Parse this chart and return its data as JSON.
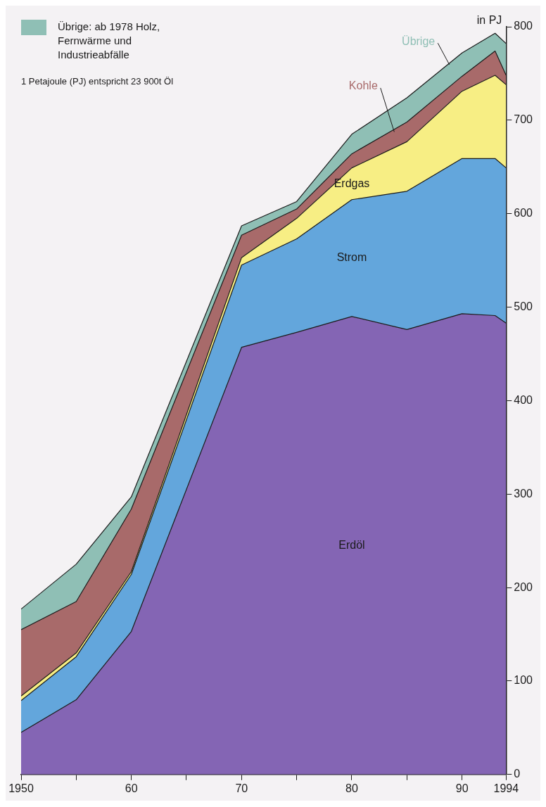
{
  "chart_data": {
    "type": "area",
    "stacked": true,
    "ylabel": "in PJ",
    "annotations": [
      "Übrige: ab 1978 Holz, Fernwärme und Industrieabfälle",
      "1 Petajoule (PJ) entspricht 23 900t Öl"
    ],
    "x": [
      1950,
      1955,
      1960,
      1970,
      1975,
      1980,
      1985,
      1990,
      1993,
      1994
    ],
    "series": [
      {
        "name": "Erdöl",
        "color": "#8465b4",
        "values": [
          45,
          80,
          153,
          457,
          473,
          490,
          476,
          493,
          491,
          483
        ]
      },
      {
        "name": "Strom",
        "color": "#63a6dc",
        "values": [
          34,
          46,
          61,
          88,
          100,
          125,
          148,
          166,
          168,
          166
        ]
      },
      {
        "name": "Erdgas",
        "color": "#f7ee84",
        "values": [
          5,
          4,
          3,
          8,
          22,
          34,
          53,
          72,
          89,
          89
        ]
      },
      {
        "name": "Kohle",
        "color": "#a86a6a",
        "values": [
          71,
          55,
          67,
          24,
          10,
          15,
          21,
          16,
          26,
          10
        ]
      },
      {
        "name": "Übrige",
        "color": "#8fbfb5",
        "values": [
          22,
          40,
          13,
          10,
          8,
          21,
          26,
          25,
          19,
          34
        ]
      }
    ],
    "xlim": [
      1950,
      1994
    ],
    "xticks": [
      1950,
      {
        "value": 1955,
        "label": null
      },
      {
        "value": 1960,
        "label": "60"
      },
      {
        "value": 1965,
        "label": null
      },
      {
        "value": 1970,
        "label": "70"
      },
      {
        "value": 1975,
        "label": null
      },
      {
        "value": 1980,
        "label": "80"
      },
      {
        "value": 1985,
        "label": null
      },
      {
        "value": 1990,
        "label": "90"
      },
      1994
    ],
    "ylim": [
      0,
      800
    ],
    "yticks": [
      0,
      100,
      200,
      300,
      400,
      500,
      600,
      700,
      800
    ],
    "grid": false,
    "legend": false
  }
}
